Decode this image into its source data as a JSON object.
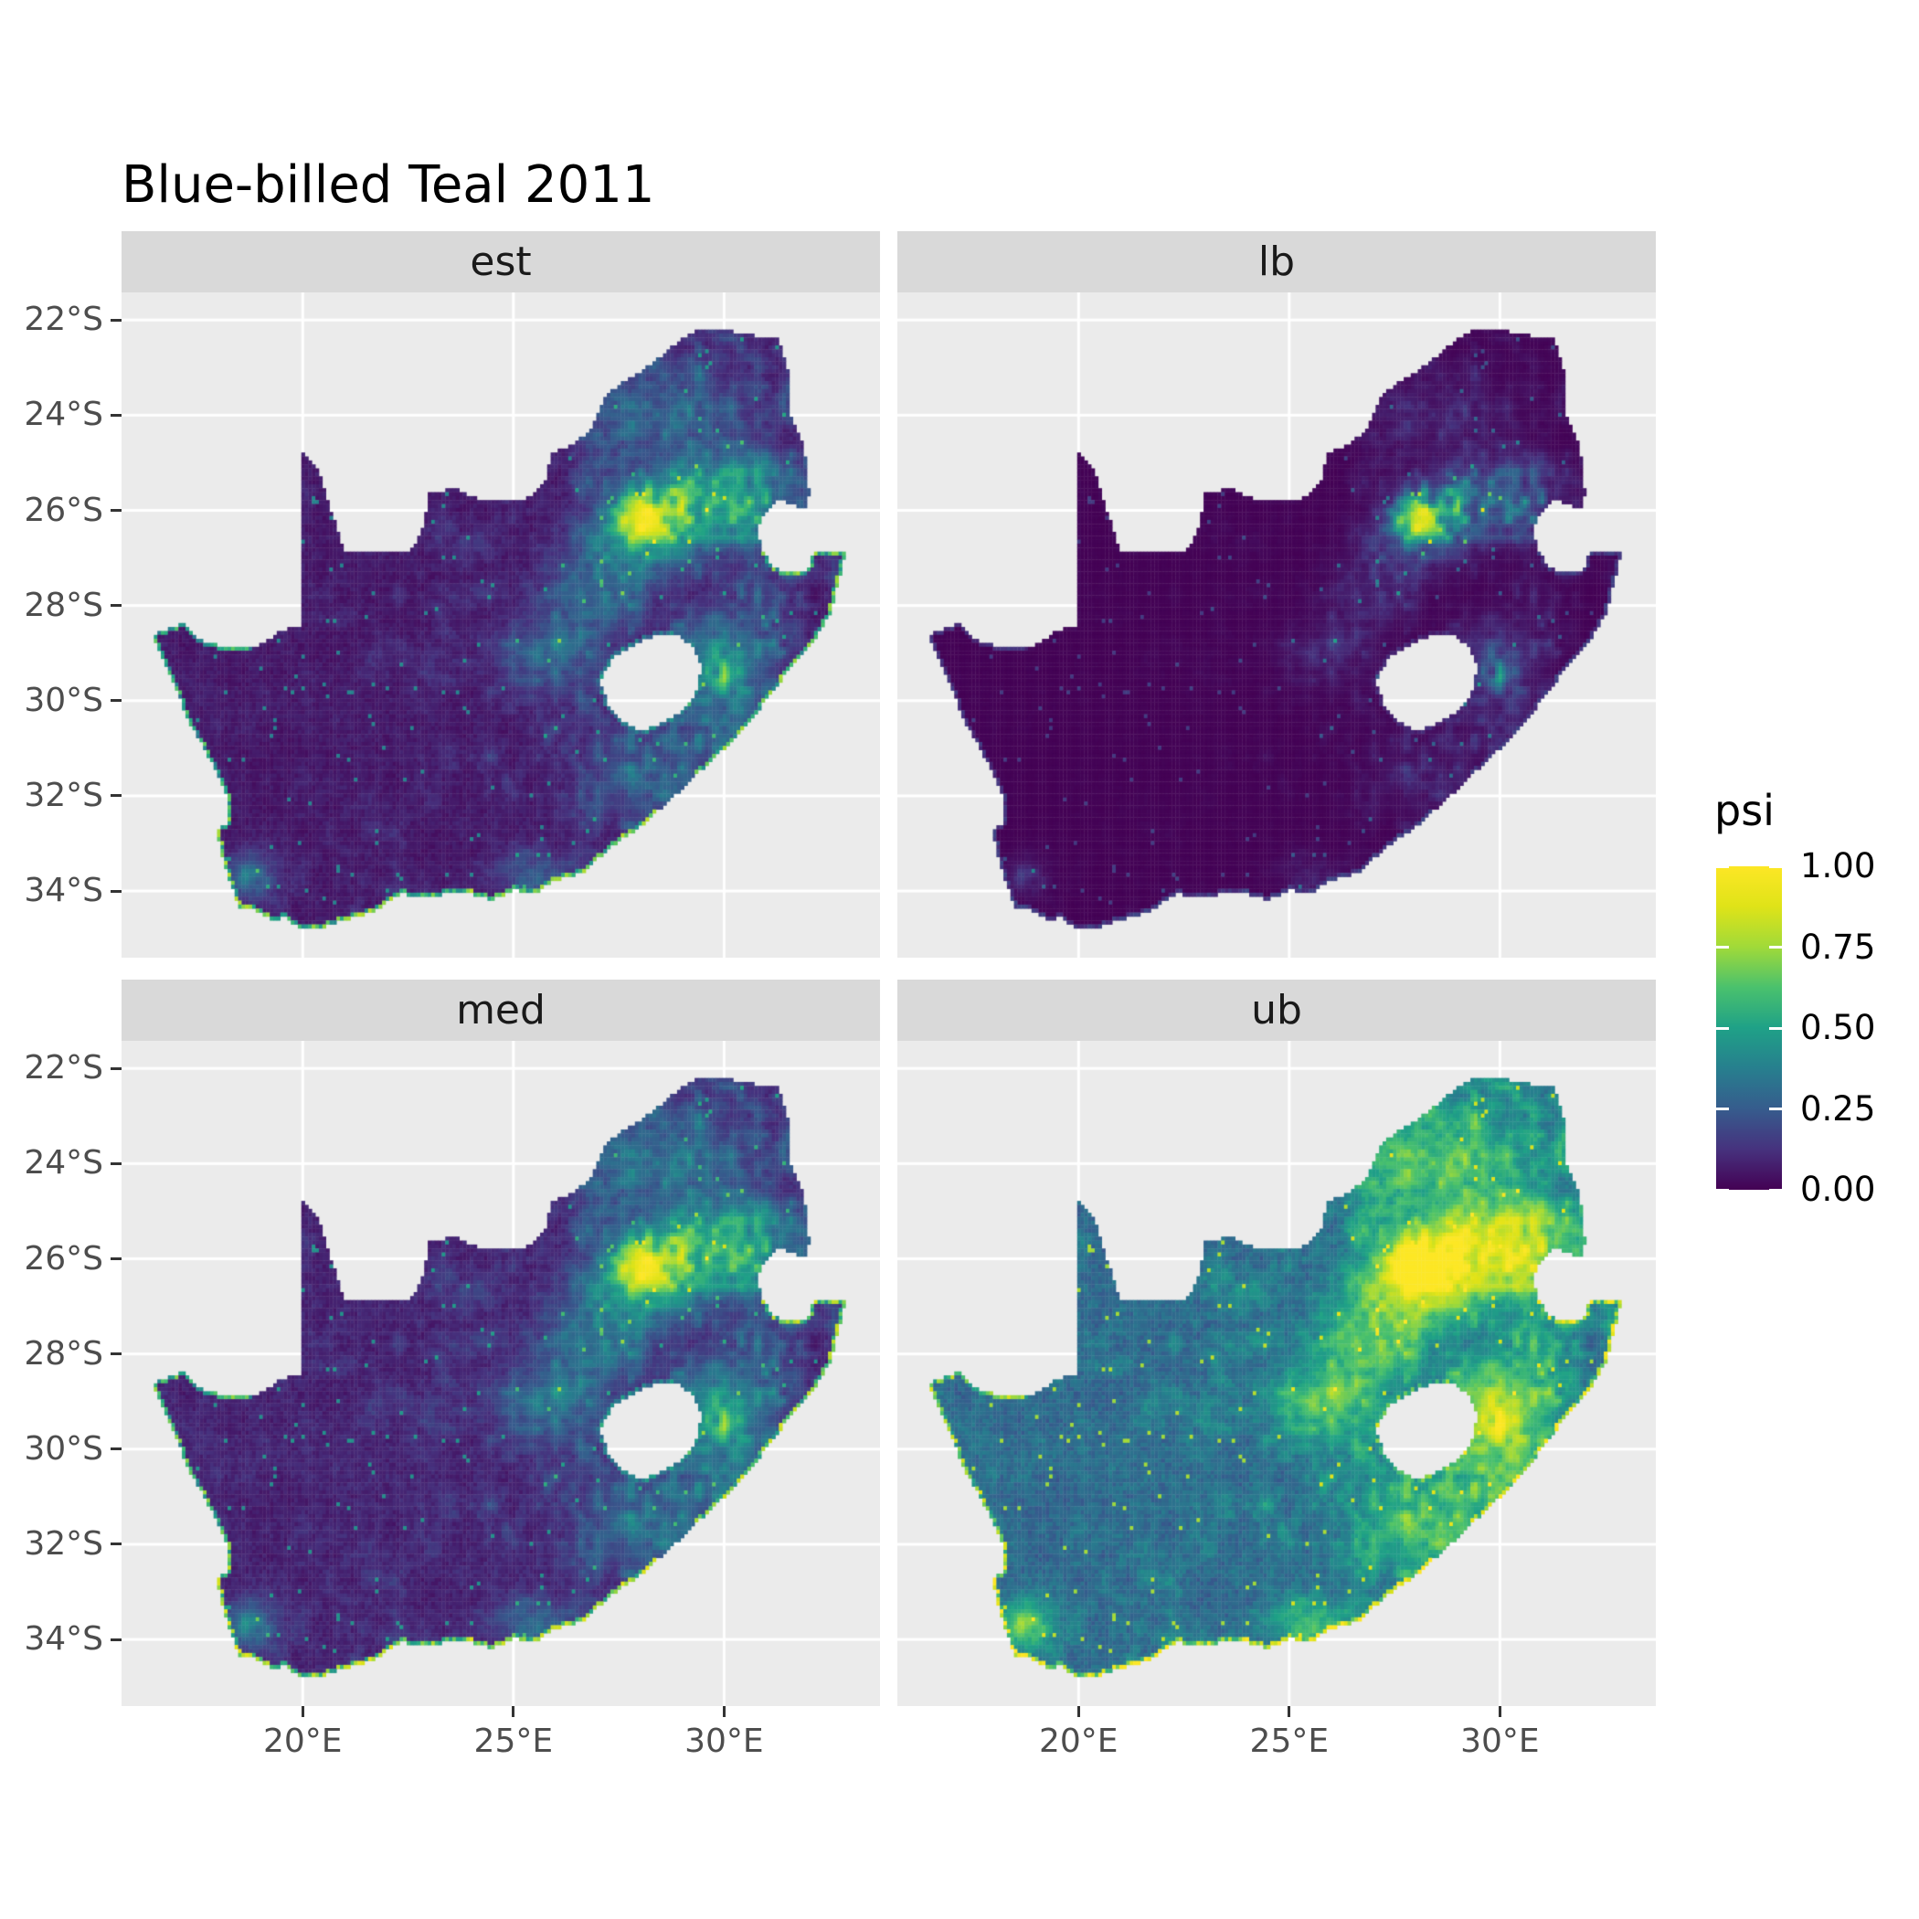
{
  "chart_data": {
    "type": "heatmap",
    "title": "Blue-billed Teal 2011",
    "variable": "psi",
    "region_name": "South Africa",
    "facet_layout": "2x2 grid, facets by statistic",
    "facets": [
      {
        "key": "est",
        "label": "est",
        "pow": 1.0,
        "mul": 1.0,
        "add": 0.0,
        "coast_k": 0.85,
        "ring_k": 0.45,
        "approx_mean_psi": 0.12
      },
      {
        "key": "lb",
        "label": "lb",
        "pow": 1.9,
        "mul": 0.92,
        "add": 0.0,
        "coast_k": 0.2,
        "ring_k": 0.12,
        "approx_mean_psi": 0.05
      },
      {
        "key": "med",
        "label": "med",
        "pow": 0.87,
        "mul": 1.0,
        "add": 0.0,
        "coast_k": 0.95,
        "ring_k": 0.5,
        "approx_mean_psi": 0.13
      },
      {
        "key": "ub",
        "label": "ub",
        "pow": 0.6,
        "mul": 1.18,
        "add": 0.085,
        "coast_k": 1.12,
        "ring_k": 0.75,
        "approx_mean_psi": 0.35
      }
    ],
    "x": {
      "tick_labels": [
        "20°E",
        "25°E",
        "30°E"
      ],
      "tick_values": [
        20,
        25,
        30
      ],
      "domain": [
        15.7,
        33.7
      ],
      "unit": "degrees East"
    },
    "y": {
      "tick_labels": [
        "22°S",
        "24°S",
        "26°S",
        "28°S",
        "30°S",
        "32°S",
        "34°S"
      ],
      "tick_values": [
        22,
        24,
        26,
        28,
        30,
        32,
        34
      ],
      "domain": [
        21.42,
        35.4
      ],
      "unit": "degrees South"
    },
    "legend": {
      "title": "psi",
      "tick_labels": [
        "1.00",
        "0.75",
        "0.50",
        "0.25",
        "0.00"
      ],
      "tick_values": [
        1.0,
        0.75,
        0.5,
        0.25,
        0.0
      ],
      "limits": [
        0,
        1
      ],
      "position": "right",
      "palette": "viridis",
      "viridis_stops": [
        "#440154",
        "#46327e",
        "#365c8d",
        "#277f8e",
        "#1fa187",
        "#4ac16d",
        "#a0da39",
        "#dfe318",
        "#fde725"
      ]
    },
    "grid_step_deg": 0.0833333,
    "outline_lonlat": [
      [
        16.45,
        28.6
      ],
      [
        17.15,
        28.38
      ],
      [
        17.55,
        28.72
      ],
      [
        18.2,
        28.88
      ],
      [
        18.95,
        28.84
      ],
      [
        19.55,
        28.5
      ],
      [
        19.99,
        28.45
      ],
      [
        19.99,
        24.77
      ],
      [
        20.35,
        25.1
      ],
      [
        20.65,
        25.95
      ],
      [
        20.9,
        26.6
      ],
      [
        20.95,
        26.88
      ],
      [
        21.6,
        26.88
      ],
      [
        22.6,
        26.82
      ],
      [
        22.88,
        26.3
      ],
      [
        23.0,
        25.62
      ],
      [
        23.65,
        25.55
      ],
      [
        24.2,
        25.78
      ],
      [
        24.75,
        25.82
      ],
      [
        25.4,
        25.72
      ],
      [
        25.75,
        25.4
      ],
      [
        25.9,
        24.78
      ],
      [
        26.45,
        24.62
      ],
      [
        26.9,
        24.2
      ],
      [
        27.2,
        23.58
      ],
      [
        27.75,
        23.22
      ],
      [
        28.25,
        22.95
      ],
      [
        28.9,
        22.45
      ],
      [
        29.4,
        22.18
      ],
      [
        29.95,
        22.18
      ],
      [
        30.5,
        22.3
      ],
      [
        31.3,
        22.4
      ],
      [
        31.55,
        23.2
      ],
      [
        31.55,
        23.95
      ],
      [
        31.85,
        24.55
      ],
      [
        31.97,
        25.1
      ],
      [
        32.02,
        25.65
      ],
      [
        31.97,
        25.98
      ],
      [
        31.3,
        25.78
      ],
      [
        30.95,
        26.05
      ],
      [
        30.78,
        26.45
      ],
      [
        30.9,
        26.82
      ],
      [
        31.15,
        27.2
      ],
      [
        31.5,
        27.32
      ],
      [
        31.97,
        27.32
      ],
      [
        32.13,
        26.86
      ],
      [
        32.89,
        26.86
      ],
      [
        32.55,
        28.1
      ],
      [
        32.1,
        28.8
      ],
      [
        31.55,
        29.35
      ],
      [
        31.05,
        29.9
      ],
      [
        30.6,
        30.48
      ],
      [
        30.0,
        31.0
      ],
      [
        29.35,
        31.55
      ],
      [
        28.7,
        32.1
      ],
      [
        28.0,
        32.65
      ],
      [
        27.35,
        33.05
      ],
      [
        26.65,
        33.6
      ],
      [
        26.0,
        33.78
      ],
      [
        25.65,
        33.95
      ],
      [
        25.62,
        34.05
      ],
      [
        25.0,
        33.98
      ],
      [
        24.5,
        34.18
      ],
      [
        23.7,
        34.0
      ],
      [
        23.0,
        34.12
      ],
      [
        22.3,
        34.06
      ],
      [
        21.7,
        34.42
      ],
      [
        20.95,
        34.62
      ],
      [
        20.35,
        34.8
      ],
      [
        19.95,
        34.82
      ],
      [
        19.6,
        34.55
      ],
      [
        19.32,
        34.62
      ],
      [
        18.85,
        34.38
      ],
      [
        18.46,
        34.32
      ],
      [
        18.4,
        34.05
      ],
      [
        18.28,
        33.85
      ],
      [
        18.1,
        33.3
      ],
      [
        17.95,
        32.75
      ],
      [
        18.25,
        32.55
      ],
      [
        18.18,
        32.0
      ],
      [
        17.85,
        31.3
      ],
      [
        17.3,
        30.45
      ],
      [
        16.95,
        29.65
      ],
      [
        16.6,
        29.0
      ]
    ],
    "lesotho_hole_lonlat": [
      [
        27.05,
        29.58
      ],
      [
        27.38,
        29.08
      ],
      [
        27.78,
        28.85
      ],
      [
        28.3,
        28.65
      ],
      [
        28.88,
        28.62
      ],
      [
        29.28,
        28.88
      ],
      [
        29.46,
        29.28
      ],
      [
        29.36,
        29.76
      ],
      [
        29.1,
        30.15
      ],
      [
        28.6,
        30.42
      ],
      [
        28.05,
        30.65
      ],
      [
        27.58,
        30.45
      ],
      [
        27.25,
        30.08
      ]
    ],
    "field_model": {
      "noise": {
        "coarse_scale": 1.8,
        "fine_scale": 5.0,
        "coarse_weight": 0.55,
        "fine_weight": 0.45,
        "base": 0.028,
        "cell_jitter": 0.045,
        "texture_amp": 0.3,
        "texture_pow": 2.6,
        "east_bias_start": 19.5,
        "east_bias_span": 11,
        "east_min": 0.2,
        "speck_threshold": 0.988,
        "speck_boost": 0.3
      },
      "hotspots": [
        [
          28.15,
          26.25,
          0.85,
          1.05,
          0.7
        ],
        [
          29.45,
          25.65,
          0.4,
          1.5,
          0.95
        ],
        [
          28.5,
          23.9,
          0.26,
          1.9,
          1.1
        ],
        [
          27.2,
          27.4,
          0.3,
          1.3,
          0.9
        ],
        [
          26.1,
          28.9,
          0.25,
          1.3,
          0.9
        ],
        [
          30.2,
          29.7,
          0.3,
          1.2,
          1.4
        ],
        [
          29.7,
          29.1,
          0.28,
          0.9,
          0.8
        ],
        [
          28.4,
          31.6,
          0.22,
          1.6,
          1.1
        ],
        [
          18.75,
          33.7,
          0.35,
          0.6,
          0.5
        ],
        [
          25.5,
          33.7,
          0.26,
          0.9,
          0.5
        ],
        [
          30.6,
          26.0,
          0.3,
          1.2,
          1.0
        ]
      ],
      "coast": {
        "south": {
          "min_lat": 32.3,
          "amp": 0.95
        },
        "east": {
          "min_lon": 29.3,
          "min_lat": 26.9,
          "amp": 0.9
        },
        "west": {
          "max_lon": 18.8,
          "min_lat": 28.4,
          "amp": 0.78
        },
        "other_amp": 0.12
      }
    },
    "colors": {
      "panel_bg": "#ebebeb",
      "strip_bg": "#d9d9d9",
      "strip_text": "#1a1a1a",
      "grid": "#ffffff",
      "axis_text": "#4d4d4d",
      "tick_mark": "#333333",
      "title_text": "#000000",
      "background": "#ffffff"
    }
  }
}
